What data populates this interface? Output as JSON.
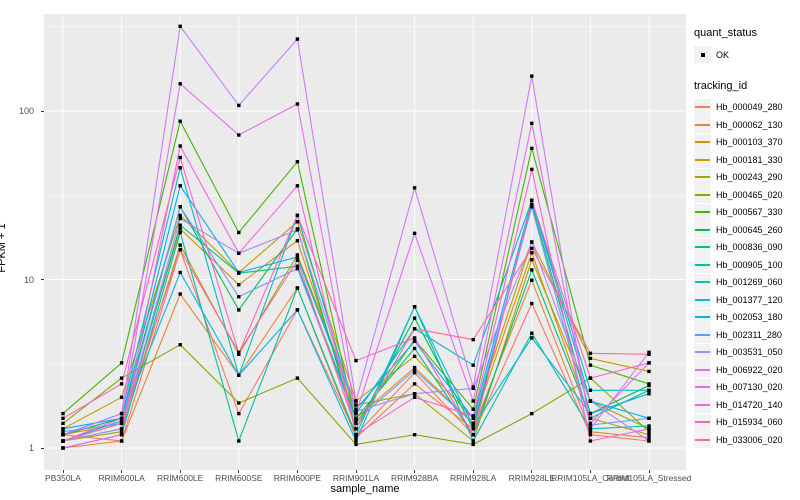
{
  "colors": {
    "panel_bg": "#EBEBEB",
    "grid": "#FFFFFF",
    "axis_text": "#4D4D4D",
    "text": "#000000",
    "legend_key_bg": "#F2F2F2",
    "point": "#000000"
  },
  "chart_data": {
    "type": "line",
    "title": "",
    "xlabel": "sample_name",
    "ylabel": "FPKM + 1",
    "y_scale": "log10",
    "y_ticks": [
      1,
      10,
      100
    ],
    "ylim": [
      0.74,
      377
    ],
    "grid": true,
    "legend_position": "right",
    "point_symbol": "black-square-point",
    "categories": [
      "PB350LA",
      "RRIM600LA",
      "RRIM600LE",
      "RRIM600SE",
      "RRIM600PE",
      "RRIM901LA",
      "RRIM928BA",
      "RRIM928LA",
      "RRIM928LE",
      "RRIM105LA_Control",
      "RRIM105LA_Stressed"
    ],
    "quant_status": {
      "title": "quant_status",
      "items": [
        {
          "label": "OK",
          "symbol": "black-square-point"
        }
      ]
    },
    "tracking_legend_title": "tracking_id",
    "series": [
      {
        "name": "Hb_000049_280",
        "color": "#F8766D",
        "values": [
          1.2,
          1.1,
          15,
          1.6,
          6.6,
          1.2,
          2.8,
          1.2,
          7.2,
          1.2,
          1.1
        ]
      },
      {
        "name": "Hb_000062_130",
        "color": "#EB8335",
        "values": [
          1.0,
          1.1,
          8.2,
          2.7,
          8.9,
          1.15,
          2.4,
          1.3,
          9.9,
          1.25,
          1.15
        ]
      },
      {
        "name": "Hb_000103_370",
        "color": "#D99000",
        "values": [
          1.2,
          1.4,
          20,
          9.3,
          17,
          1.5,
          3.0,
          1.4,
          14.4,
          1.5,
          1.2
        ]
      },
      {
        "name": "Hb_000181_330",
        "color": "#C29B00",
        "values": [
          1.3,
          2.0,
          24,
          11,
          22,
          1.9,
          3.5,
          1.5,
          16.7,
          3.4,
          2.85
        ]
      },
      {
        "name": "Hb_000243_290",
        "color": "#A6A400",
        "values": [
          1.1,
          1.25,
          16,
          3.6,
          14,
          1.8,
          2.1,
          1.1,
          13.1,
          1.9,
          1.3
        ]
      },
      {
        "name": "Hb_000465_020",
        "color": "#82AB00",
        "values": [
          1.4,
          2.6,
          4.1,
          1.85,
          2.6,
          1.05,
          1.2,
          1.05,
          1.6,
          2.6,
          1.25
        ]
      },
      {
        "name": "Hb_000567_330",
        "color": "#45B500",
        "values": [
          1.6,
          3.2,
          87,
          19,
          50,
          1.4,
          4.4,
          1.7,
          60,
          3.1,
          2.4
        ]
      },
      {
        "name": "Hb_000645_260",
        "color": "#00BC51",
        "values": [
          1.2,
          1.5,
          27,
          6.6,
          20,
          1.3,
          5.9,
          1.3,
          28,
          1.6,
          2.35
        ]
      },
      {
        "name": "Hb_000836_090",
        "color": "#00BF7F",
        "values": [
          1.1,
          1.3,
          21,
          10.9,
          12,
          1.5,
          3.9,
          1.2,
          11.4,
          1.5,
          2.2
        ]
      },
      {
        "name": "Hb_000905_100",
        "color": "#00C0A2",
        "values": [
          1.0,
          1.2,
          19,
          1.1,
          8.9,
          1.2,
          6.9,
          1.1,
          4.8,
          1.3,
          1.35
        ]
      },
      {
        "name": "Hb_001269_060",
        "color": "#00BDC2",
        "values": [
          1.2,
          1.6,
          46,
          2.7,
          24,
          1.6,
          5.1,
          3.1,
          29.5,
          2.2,
          2.2
        ]
      },
      {
        "name": "Hb_001377_120",
        "color": "#00B7E8",
        "values": [
          1.1,
          1.45,
          11,
          2.7,
          6.6,
          1.1,
          6.9,
          1.35,
          4.5,
          1.6,
          2.1
        ]
      },
      {
        "name": "Hb_002053_180",
        "color": "#00ACFC",
        "values": [
          1.3,
          1.5,
          36,
          11,
          13.6,
          1.7,
          4.3,
          1.5,
          29.5,
          1.9,
          1.5
        ]
      },
      {
        "name": "Hb_002311_280",
        "color": "#679CFF",
        "values": [
          1.25,
          1.4,
          27,
          7.9,
          11.6,
          1.45,
          2.9,
          1.4,
          27,
          1.37,
          1.5
        ]
      },
      {
        "name": "Hb_003531_050",
        "color": "#A589FF",
        "values": [
          1.1,
          1.3,
          23,
          14.3,
          19.7,
          1.65,
          2.1,
          2.26,
          16.7,
          1.9,
          1.1
        ]
      },
      {
        "name": "Hb_006922_020",
        "color": "#CD79FF",
        "values": [
          1.2,
          1.6,
          318,
          108,
          267,
          1.9,
          35,
          2.3,
          161,
          1.3,
          3.7
        ]
      },
      {
        "name": "Hb_007130_020",
        "color": "#E76BF3",
        "values": [
          1.1,
          1.5,
          145,
          72,
          110,
          1.6,
          18.8,
          1.9,
          84.5,
          1.4,
          3.2
        ]
      },
      {
        "name": "Hb_014720_140",
        "color": "#F863DE",
        "values": [
          1.0,
          1.2,
          62,
          14.3,
          36,
          1.2,
          2.0,
          1.55,
          45,
          1.1,
          1.3
        ]
      },
      {
        "name": "Hb_015934_060",
        "color": "#FF61C3",
        "values": [
          1.5,
          2.4,
          53,
          3.65,
          24,
          3.3,
          4.5,
          1.2,
          29.5,
          2.6,
          3.2
        ]
      },
      {
        "name": "Hb_033006_020",
        "color": "#FF6B94",
        "values": [
          1.1,
          1.4,
          15,
          3.7,
          13,
          1.3,
          5.1,
          4.4,
          15.3,
          3.65,
          3.6
        ]
      }
    ]
  }
}
